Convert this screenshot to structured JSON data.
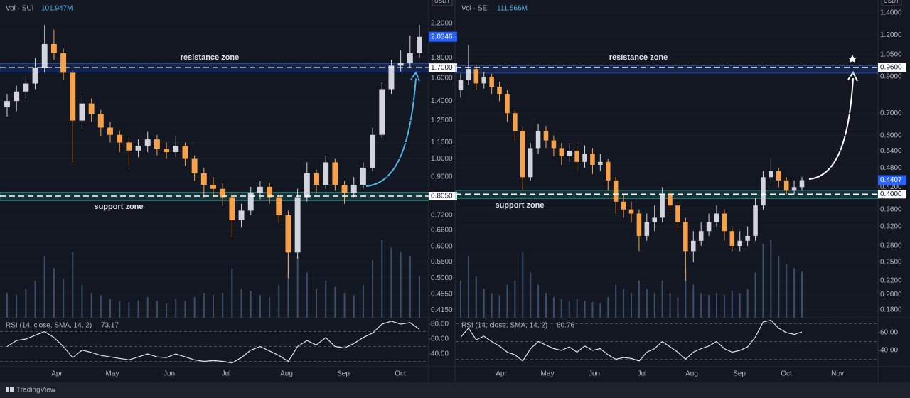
{
  "chart_data": [
    {
      "type": "candlestick",
      "currency": "USDT",
      "volume_name": "Vol · SUI",
      "volume_last_label": "101.947M",
      "rsi_name": "RSI (14, close, SMA, 14, 2)",
      "log_scale": true,
      "up_color": "#d1d4dc",
      "down_color": "#f7a24b",
      "volume_color": "#3a4f6e",
      "rsi_color": "#e0e3eb",
      "months": [
        "Apr",
        "May",
        "Jun",
        "Jul",
        "Aug",
        "Sep",
        "Oct"
      ],
      "open": [
        1.35,
        1.4,
        1.48,
        1.55,
        1.7,
        1.95,
        1.85,
        1.65,
        1.25,
        1.38,
        1.3,
        1.2,
        1.15,
        1.1,
        1.05,
        1.08,
        1.12,
        1.06,
        1.04,
        1.08,
        1.0,
        0.92,
        0.86,
        0.84,
        0.8,
        0.7,
        0.74,
        0.82,
        0.85,
        0.8,
        0.72,
        0.58,
        0.8,
        0.92,
        0.86,
        0.98,
        0.86,
        0.82,
        0.86,
        0.95,
        1.15,
        1.5,
        1.72,
        1.75,
        1.85
      ],
      "high": [
        1.46,
        1.53,
        1.62,
        1.8,
        2.18,
        2.12,
        1.9,
        1.68,
        1.45,
        1.42,
        1.33,
        1.24,
        1.18,
        1.13,
        1.12,
        1.17,
        1.15,
        1.1,
        1.14,
        1.1,
        1.02,
        0.95,
        0.9,
        0.87,
        0.82,
        0.77,
        0.85,
        0.88,
        0.87,
        0.82,
        0.74,
        0.84,
        0.98,
        0.94,
        1.02,
        1.0,
        0.88,
        0.9,
        0.98,
        1.2,
        1.56,
        1.78,
        1.88,
        2.05,
        2.18
      ],
      "low": [
        1.28,
        1.32,
        1.42,
        1.5,
        1.65,
        1.78,
        1.58,
        0.98,
        1.18,
        1.24,
        1.14,
        1.1,
        1.04,
        0.96,
        1.01,
        1.04,
        1.02,
        1.0,
        1.01,
        0.96,
        0.88,
        0.8,
        0.8,
        0.76,
        0.63,
        0.67,
        0.72,
        0.79,
        0.77,
        0.69,
        0.5,
        0.56,
        0.78,
        0.82,
        0.84,
        0.83,
        0.77,
        0.8,
        0.84,
        0.93,
        1.13,
        1.46,
        1.66,
        1.7,
        1.8
      ],
      "close": [
        1.4,
        1.48,
        1.55,
        1.7,
        1.95,
        1.85,
        1.65,
        1.25,
        1.38,
        1.3,
        1.2,
        1.15,
        1.1,
        1.05,
        1.08,
        1.12,
        1.06,
        1.04,
        1.08,
        1.0,
        0.92,
        0.86,
        0.84,
        0.8,
        0.7,
        0.74,
        0.82,
        0.85,
        0.8,
        0.72,
        0.58,
        0.8,
        0.92,
        0.86,
        0.98,
        0.86,
        0.82,
        0.86,
        0.95,
        1.15,
        1.5,
        1.72,
        1.75,
        1.85,
        2.0346
      ],
      "volume": [
        60,
        55,
        70,
        90,
        150,
        120,
        95,
        160,
        80,
        60,
        55,
        45,
        40,
        38,
        42,
        50,
        40,
        35,
        45,
        40,
        50,
        60,
        55,
        60,
        120,
        70,
        65,
        55,
        50,
        80,
        180,
        150,
        110,
        70,
        90,
        75,
        60,
        55,
        80,
        140,
        190,
        170,
        160,
        150,
        101.947
      ],
      "rsi": [
        50,
        58,
        60,
        65,
        70,
        62,
        50,
        35,
        45,
        42,
        38,
        36,
        34,
        32,
        36,
        40,
        36,
        35,
        40,
        36,
        32,
        30,
        31,
        30,
        28,
        35,
        45,
        50,
        44,
        38,
        30,
        50,
        58,
        52,
        62,
        50,
        48,
        54,
        62,
        68,
        80,
        84,
        80,
        82,
        73.17
      ],
      "rsi_bands": [
        30,
        50,
        70
      ],
      "ylim": [
        0.397,
        2.52
      ],
      "yticks": [
        {
          "value": 2.2,
          "label": "2.2000"
        },
        {
          "value": 1.8,
          "label": "1.8000"
        },
        {
          "value": 1.6,
          "label": "1.6000"
        },
        {
          "value": 1.4,
          "label": "1.4000"
        },
        {
          "value": 1.25,
          "label": "1.2500"
        },
        {
          "value": 1.1,
          "label": "1.1000"
        },
        {
          "value": 1.0,
          "label": "1.0000"
        },
        {
          "value": 0.9,
          "label": "0.9000"
        },
        {
          "value": 0.72,
          "label": "0.7200"
        },
        {
          "value": 0.66,
          "label": "0.6600"
        },
        {
          "value": 0.6,
          "label": "0.6000"
        },
        {
          "value": 0.55,
          "label": "0.5500"
        },
        {
          "value": 0.5,
          "label": "0.5000"
        },
        {
          "value": 0.455,
          "label": "0.4550"
        },
        {
          "value": 0.415,
          "label": "0.4150"
        }
      ],
      "rsi_ylim": [
        23.8,
        87.6
      ],
      "rsi_ticks": [
        {
          "value": 80,
          "label": "80.00"
        },
        {
          "value": 60,
          "label": "60.00"
        },
        {
          "value": 40,
          "label": "40.00"
        }
      ],
      "levels": [
        {
          "value": 1.7,
          "label": "1.7000"
        },
        {
          "value": 0.805,
          "label": "0.8050"
        }
      ],
      "last_price": {
        "value": 2.0346,
        "label": "2.0346"
      },
      "zones": [
        {
          "label": "resistance zone",
          "range": [
            1.655,
            1.74
          ]
        },
        {
          "label": "support zone",
          "range": [
            0.784,
            0.824
          ]
        }
      ]
    },
    {
      "type": "candlestick",
      "currency": "USDT",
      "volume_name": "Vol · SEI",
      "volume_last_label": "111.566M",
      "rsi_name": "RSI (14, close, SMA, 14, 2)",
      "log_scale": true,
      "up_color": "#d1d4dc",
      "down_color": "#f7a24b",
      "volume_color": "#3a4f6e",
      "rsi_color": "#e0e3eb",
      "months": [
        "Apr",
        "May",
        "Jun",
        "Jul",
        "Aug",
        "Sep",
        "Oct",
        "Nov"
      ],
      "open": [
        0.82,
        0.88,
        0.95,
        0.86,
        0.9,
        0.84,
        0.8,
        0.7,
        0.62,
        0.45,
        0.55,
        0.62,
        0.58,
        0.55,
        0.52,
        0.54,
        0.5,
        0.53,
        0.49,
        0.5,
        0.44,
        0.38,
        0.36,
        0.35,
        0.3,
        0.33,
        0.34,
        0.4,
        0.37,
        0.33,
        0.27,
        0.29,
        0.31,
        0.33,
        0.35,
        0.31,
        0.28,
        0.29,
        0.3,
        0.37,
        0.45,
        0.47,
        0.44,
        0.41,
        0.42
      ],
      "high": [
        0.92,
        1.12,
        0.98,
        0.93,
        0.92,
        0.87,
        0.82,
        0.72,
        0.64,
        0.57,
        0.65,
        0.64,
        0.6,
        0.57,
        0.57,
        0.56,
        0.56,
        0.55,
        0.53,
        0.51,
        0.45,
        0.4,
        0.38,
        0.36,
        0.35,
        0.37,
        0.42,
        0.41,
        0.38,
        0.34,
        0.31,
        0.33,
        0.35,
        0.37,
        0.36,
        0.32,
        0.31,
        0.32,
        0.39,
        0.47,
        0.51,
        0.48,
        0.45,
        0.44,
        0.45
      ],
      "low": [
        0.78,
        0.85,
        0.82,
        0.83,
        0.8,
        0.76,
        0.66,
        0.58,
        0.41,
        0.44,
        0.53,
        0.55,
        0.52,
        0.49,
        0.5,
        0.47,
        0.48,
        0.46,
        0.47,
        0.41,
        0.35,
        0.34,
        0.33,
        0.27,
        0.29,
        0.31,
        0.33,
        0.35,
        0.31,
        0.22,
        0.25,
        0.28,
        0.3,
        0.32,
        0.29,
        0.27,
        0.27,
        0.28,
        0.29,
        0.36,
        0.43,
        0.42,
        0.4,
        0.4,
        0.41
      ],
      "close": [
        0.88,
        0.95,
        0.86,
        0.9,
        0.84,
        0.8,
        0.7,
        0.62,
        0.45,
        0.55,
        0.62,
        0.58,
        0.55,
        0.52,
        0.54,
        0.5,
        0.53,
        0.49,
        0.5,
        0.44,
        0.38,
        0.36,
        0.35,
        0.3,
        0.33,
        0.34,
        0.4,
        0.37,
        0.33,
        0.27,
        0.29,
        0.31,
        0.33,
        0.35,
        0.31,
        0.28,
        0.29,
        0.3,
        0.37,
        0.45,
        0.47,
        0.44,
        0.41,
        0.42,
        0.4407
      ],
      "volume": [
        90,
        150,
        100,
        70,
        60,
        55,
        80,
        90,
        160,
        110,
        80,
        60,
        50,
        45,
        40,
        45,
        40,
        38,
        35,
        50,
        80,
        70,
        60,
        90,
        70,
        60,
        90,
        60,
        50,
        120,
        80,
        60,
        55,
        60,
        55,
        65,
        60,
        70,
        110,
        180,
        190,
        150,
        130,
        120,
        111.566
      ],
      "rsi": [
        55,
        65,
        52,
        56,
        50,
        45,
        38,
        35,
        28,
        42,
        50,
        46,
        42,
        40,
        44,
        38,
        45,
        40,
        42,
        35,
        30,
        32,
        31,
        28,
        38,
        42,
        50,
        44,
        38,
        30,
        38,
        42,
        45,
        50,
        42,
        38,
        40,
        44,
        55,
        72,
        74,
        65,
        60,
        58,
        60.76
      ],
      "rsi_bands": [
        30,
        50,
        70
      ],
      "ylim": [
        0.1705,
        1.53
      ],
      "yticks": [
        {
          "value": 1.4,
          "label": "1.4000"
        },
        {
          "value": 1.2,
          "label": "1.2000"
        },
        {
          "value": 1.05,
          "label": "1.0500"
        },
        {
          "value": 0.9,
          "label": "0.9000"
        },
        {
          "value": 0.7,
          "label": "0.7000"
        },
        {
          "value": 0.6,
          "label": "0.6000"
        },
        {
          "value": 0.54,
          "label": "0.5400"
        },
        {
          "value": 0.48,
          "label": "0.4800"
        },
        {
          "value": 0.42,
          "label": "0.4200"
        },
        {
          "value": 0.36,
          "label": "0.3600"
        },
        {
          "value": 0.32,
          "label": "0.3200"
        },
        {
          "value": 0.28,
          "label": "0.2800"
        },
        {
          "value": 0.25,
          "label": "0.2500"
        },
        {
          "value": 0.22,
          "label": "0.2200"
        },
        {
          "value": 0.2,
          "label": "0.2000"
        },
        {
          "value": 0.18,
          "label": "0.1800"
        }
      ],
      "rsi_ylim": [
        22.4,
        76
      ],
      "rsi_ticks": [
        {
          "value": 60,
          "label": "60.00"
        },
        {
          "value": 40,
          "label": "40.00"
        }
      ],
      "levels": [
        {
          "value": 0.96,
          "label": "0.9600"
        },
        {
          "value": 0.4,
          "label": "0.4000"
        }
      ],
      "last_price": {
        "value": 0.4407,
        "label": "0.4407"
      },
      "zones": [
        {
          "label": "resistance zone",
          "range": [
            0.923,
            0.973
          ]
        },
        {
          "label": "support zone",
          "range": [
            0.3875,
            0.4105
          ]
        }
      ]
    }
  ],
  "footer": {
    "brand": "TradingView"
  }
}
